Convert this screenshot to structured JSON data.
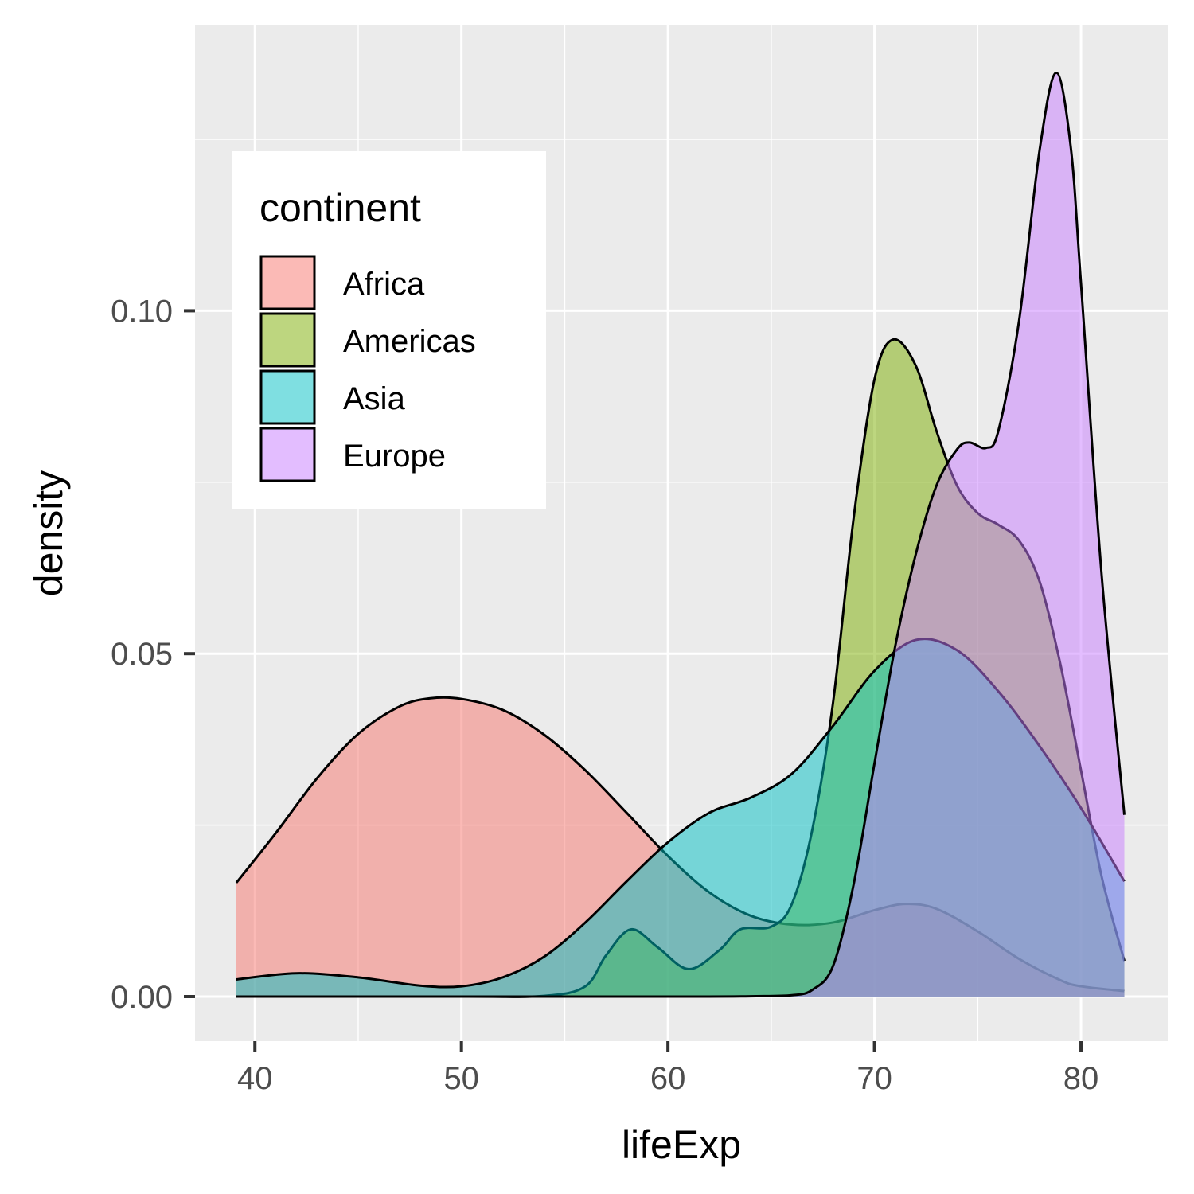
{
  "chart_data": {
    "type": "area",
    "subtype": "density",
    "title": "",
    "xlabel": "lifeExp",
    "ylabel": "density",
    "xlim": [
      37.1,
      84.2
    ],
    "ylim": [
      -0.0065,
      0.1416
    ],
    "x_ticks": [
      40,
      50,
      60,
      70,
      80
    ],
    "x_tick_labels": [
      "40",
      "50",
      "60",
      "70",
      "80"
    ],
    "x_minor_ticks": [
      45,
      55,
      65,
      75
    ],
    "y_ticks": [
      0,
      0.05,
      0.1
    ],
    "y_tick_labels": [
      "0.00",
      "0.05",
      "0.10"
    ],
    "y_minor_ticks": [
      0.025,
      0.075,
      0.125
    ],
    "grid": true,
    "fill_alpha": 0.5,
    "legend": {
      "title": "continent",
      "placement": "top-left-inside"
    },
    "series": [
      {
        "name": "Africa",
        "color": "#F8766D",
        "x": [
          39.1,
          41,
          43,
          45,
          47,
          48.5,
          50,
          52,
          54,
          56,
          58,
          60,
          62,
          64,
          66,
          68,
          70,
          71.5,
          73,
          75,
          77,
          79,
          80,
          82.1
        ],
        "values": [
          0.0166,
          0.0238,
          0.0318,
          0.0383,
          0.0423,
          0.0435,
          0.0434,
          0.0418,
          0.0382,
          0.033,
          0.0268,
          0.0205,
          0.0152,
          0.0118,
          0.0105,
          0.0108,
          0.0126,
          0.0135,
          0.0128,
          0.0095,
          0.0055,
          0.0024,
          0.0015,
          0.0008
        ]
      },
      {
        "name": "Americas",
        "color": "#7CAE00",
        "x": [
          39.1,
          50,
          54,
          56,
          57,
          58.2,
          59.5,
          61,
          62.5,
          63.5,
          65,
          66,
          67,
          68,
          69,
          70,
          70.9,
          72,
          73,
          74,
          75,
          76,
          77,
          78,
          79,
          80,
          81,
          82.1
        ],
        "values": [
          0,
          0,
          0.0001,
          0.0015,
          0.006,
          0.0098,
          0.0072,
          0.004,
          0.0068,
          0.0098,
          0.0102,
          0.0135,
          0.0245,
          0.043,
          0.07,
          0.09,
          0.0958,
          0.092,
          0.0825,
          0.0745,
          0.0705,
          0.0688,
          0.0665,
          0.0605,
          0.0485,
          0.033,
          0.0175,
          0.0052
        ]
      },
      {
        "name": "Asia",
        "color": "#00BFC4",
        "x": [
          39.1,
          42,
          45,
          48,
          50,
          52,
          54,
          56,
          58,
          60,
          62,
          64,
          66,
          68,
          70,
          72,
          74,
          76,
          78,
          80,
          82.1
        ],
        "values": [
          0.0025,
          0.0034,
          0.0028,
          0.0016,
          0.0015,
          0.0028,
          0.0058,
          0.0108,
          0.0168,
          0.0225,
          0.0268,
          0.029,
          0.0325,
          0.0395,
          0.0475,
          0.052,
          0.0505,
          0.0445,
          0.0365,
          0.0275,
          0.0168
        ]
      },
      {
        "name": "Europe",
        "color": "#C77CFF",
        "x": [
          39.1,
          60,
          64,
          66,
          67,
          68,
          69,
          70,
          71,
          72,
          73,
          74,
          74.6,
          75.4,
          76,
          77,
          78,
          78.8,
          79.5,
          80,
          81,
          82.1
        ],
        "values": [
          0,
          0,
          5e-05,
          0.0002,
          0.001,
          0.0045,
          0.0165,
          0.034,
          0.051,
          0.0645,
          0.0745,
          0.0798,
          0.0808,
          0.08,
          0.0825,
          0.0985,
          0.1235,
          0.1347,
          0.124,
          0.104,
          0.0615,
          0.0265
        ]
      }
    ]
  }
}
